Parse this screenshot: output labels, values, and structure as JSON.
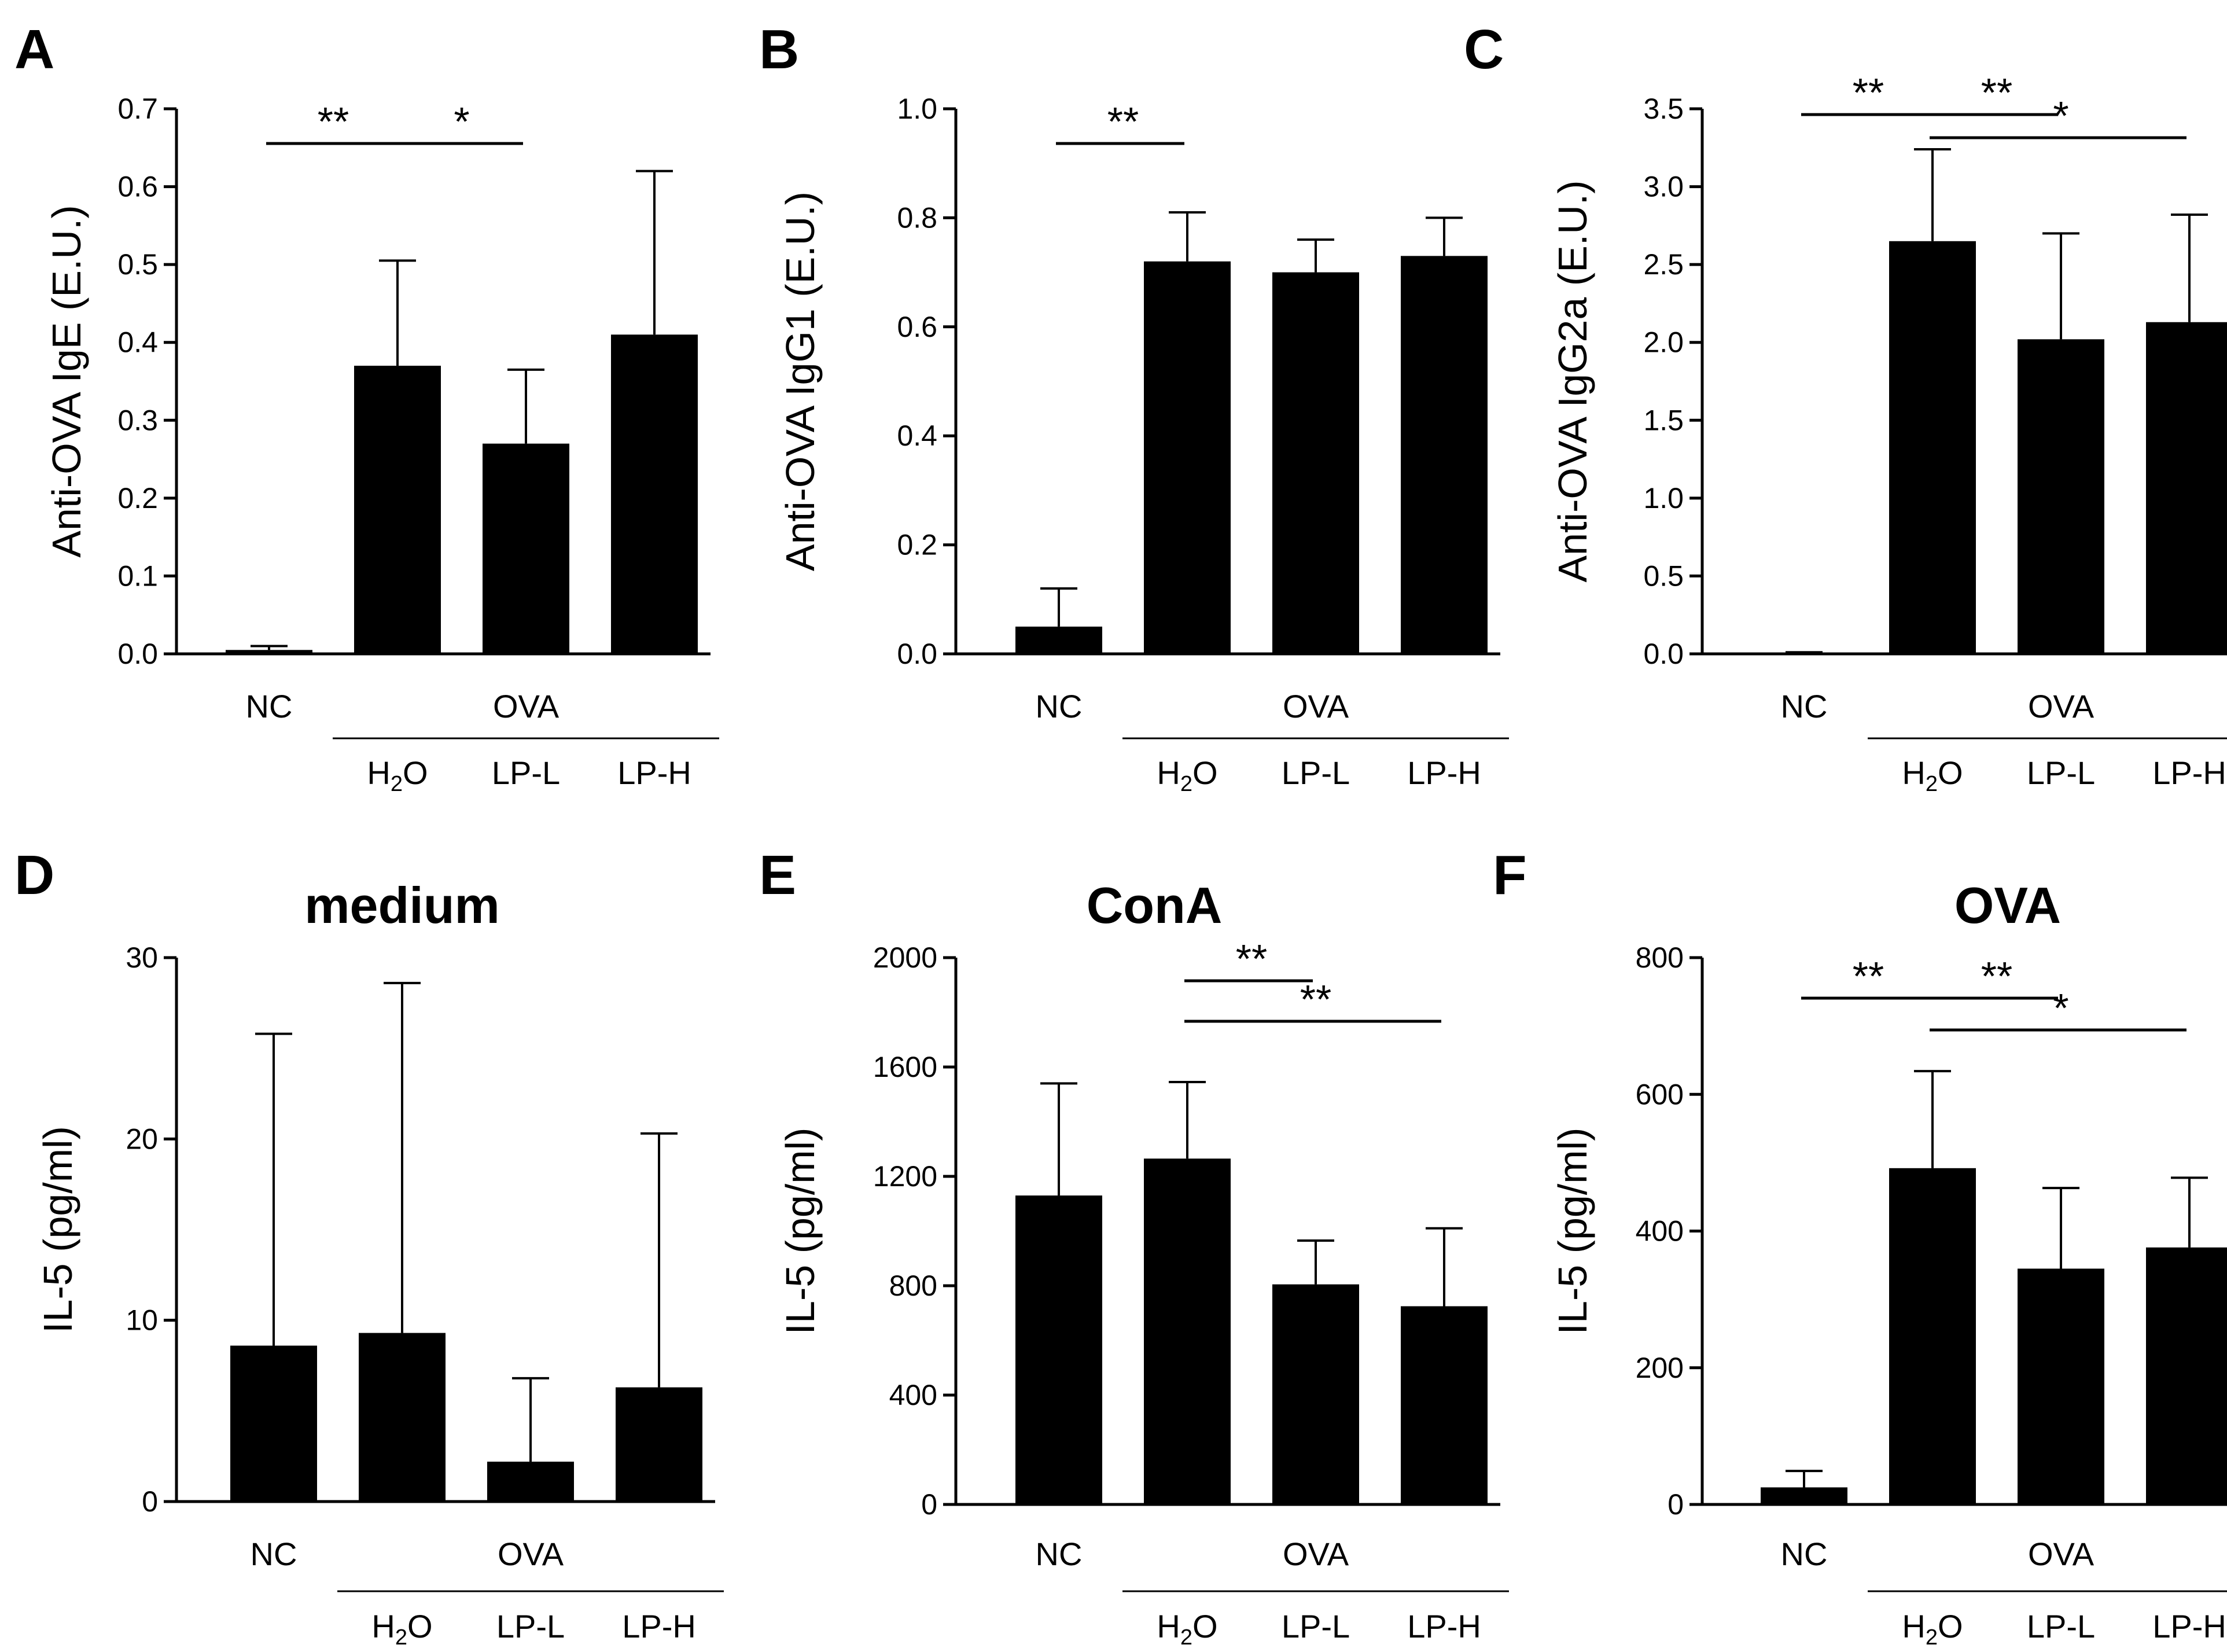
{
  "charts": [
    {
      "id": "A",
      "panel_label": "A",
      "title": "",
      "ylabel": "Anti-OVA IgE (E.U.)",
      "ticks": [
        "0.0",
        "0.1",
        "0.2",
        "0.3",
        "0.4",
        "0.5",
        "0.6",
        "0.7"
      ],
      "sig": [
        {
          "text": "**",
          "from": 0,
          "to": 1,
          "level": 0
        },
        {
          "text": "*",
          "from": 1,
          "to": 2,
          "level": 0
        }
      ]
    },
    {
      "id": "B",
      "panel_label": "B",
      "title": "",
      "ylabel": "Anti-OVA IgG1 (E.U.)",
      "ticks": [
        "0.0",
        "0.2",
        "0.4",
        "0.6",
        "0.8",
        "1.0"
      ],
      "sig": [
        {
          "text": "**",
          "from": 0,
          "to": 1,
          "level": 0
        }
      ]
    },
    {
      "id": "C",
      "panel_label": "C",
      "title": "",
      "ylabel": "Anti-OVA IgG2a (E.U.)",
      "ticks": [
        "0.0",
        "0.5",
        "1.0",
        "1.5",
        "2.0",
        "2.5",
        "3.0",
        "3.5"
      ],
      "sig": [
        {
          "text": "**",
          "from": 0,
          "to": 1,
          "level": 0
        },
        {
          "text": "**",
          "from": 1,
          "to": 2,
          "level": 0
        },
        {
          "text": "*",
          "from": 1,
          "to": 3,
          "level": 1
        }
      ]
    },
    {
      "id": "D",
      "panel_label": "D",
      "title": "medium",
      "ylabel": "IL-5 (pg/ml)",
      "ticks": [
        "0",
        "10",
        "20",
        "30"
      ],
      "sig": []
    },
    {
      "id": "E",
      "panel_label": "E",
      "title": "ConA",
      "ylabel": "IL-5 (pg/ml)",
      "ticks": [
        "0",
        "400",
        "800",
        "1200",
        "1600",
        "2000"
      ],
      "sig": [
        {
          "text": "**",
          "from": 1,
          "to": 2,
          "level": 0
        },
        {
          "text": "**",
          "from": 1,
          "to": 3,
          "level": 1
        }
      ]
    },
    {
      "id": "F",
      "panel_label": "F",
      "title": "OVA",
      "ylabel": "IL-5 (pg/ml)",
      "ticks": [
        "0",
        "200",
        "400",
        "600",
        "800"
      ],
      "sig": [
        {
          "text": "**",
          "from": 0,
          "to": 1,
          "level": 0
        },
        {
          "text": "**",
          "from": 1,
          "to": 2,
          "level": 0
        },
        {
          "text": "*",
          "from": 1,
          "to": 3,
          "level": 1
        }
      ]
    }
  ],
  "x_axis": {
    "categories": [
      "NC",
      "H2O",
      "LP-L",
      "LP-H"
    ],
    "h2o_parts": {
      "main_left": "H",
      "sub": "2",
      "main_right": "O"
    },
    "group_label": "OVA"
  },
  "chart_data": [
    {
      "type": "bar",
      "panel": "A",
      "title": "",
      "xlabel": "",
      "ylabel": "Anti-OVA IgE (E.U.)",
      "ylim": [
        0,
        0.7
      ],
      "categories": [
        "NC",
        "H2O",
        "LP-L",
        "LP-H"
      ],
      "values": [
        0.005,
        0.37,
        0.27,
        0.41
      ],
      "errors": [
        0.005,
        0.135,
        0.095,
        0.21
      ],
      "significance": [
        {
          "pair": [
            "NC",
            "H2O"
          ],
          "label": "**"
        },
        {
          "pair": [
            "H2O",
            "LP-L"
          ],
          "label": "*"
        }
      ]
    },
    {
      "type": "bar",
      "panel": "B",
      "title": "",
      "xlabel": "",
      "ylabel": "Anti-OVA IgG1 (E.U.)",
      "ylim": [
        0,
        1.0
      ],
      "categories": [
        "NC",
        "H2O",
        "LP-L",
        "LP-H"
      ],
      "values": [
        0.05,
        0.72,
        0.7,
        0.73
      ],
      "errors": [
        0.07,
        0.09,
        0.06,
        0.07
      ],
      "significance": [
        {
          "pair": [
            "NC",
            "H2O"
          ],
          "label": "**"
        }
      ]
    },
    {
      "type": "bar",
      "panel": "C",
      "title": "",
      "xlabel": "",
      "ylabel": "Anti-OVA IgG2a (E.U.)",
      "ylim": [
        0,
        3.5
      ],
      "categories": [
        "NC",
        "H2O",
        "LP-L",
        "LP-H"
      ],
      "values": [
        0.005,
        2.65,
        2.02,
        2.13
      ],
      "errors": [
        0.005,
        0.59,
        0.68,
        0.69
      ],
      "significance": [
        {
          "pair": [
            "NC",
            "H2O"
          ],
          "label": "**"
        },
        {
          "pair": [
            "H2O",
            "LP-L"
          ],
          "label": "**"
        },
        {
          "pair": [
            "H2O",
            "LP-H"
          ],
          "label": "*"
        }
      ]
    },
    {
      "type": "bar",
      "panel": "D",
      "title": "medium",
      "xlabel": "",
      "ylabel": "IL-5 (pg/ml)",
      "ylim": [
        0,
        30
      ],
      "categories": [
        "NC",
        "H2O",
        "LP-L",
        "LP-H"
      ],
      "values": [
        8.6,
        9.3,
        2.2,
        6.3
      ],
      "errors": [
        17.2,
        19.3,
        4.6,
        14.0
      ],
      "significance": []
    },
    {
      "type": "bar",
      "panel": "E",
      "title": "ConA",
      "xlabel": "",
      "ylabel": "IL-5 (pg/ml)",
      "ylim": [
        0,
        2000
      ],
      "categories": [
        "NC",
        "H2O",
        "LP-L",
        "LP-H"
      ],
      "values": [
        1130,
        1265,
        805,
        725
      ],
      "errors": [
        410,
        280,
        160,
        285
      ],
      "significance": [
        {
          "pair": [
            "H2O",
            "LP-L"
          ],
          "label": "**"
        },
        {
          "pair": [
            "H2O",
            "LP-H"
          ],
          "label": "**"
        }
      ]
    },
    {
      "type": "bar",
      "panel": "F",
      "title": "OVA",
      "xlabel": "",
      "ylabel": "IL-5 (pg/ml)",
      "ylim": [
        0,
        800
      ],
      "categories": [
        "NC",
        "H2O",
        "LP-L",
        "LP-H"
      ],
      "values": [
        25,
        492,
        345,
        376
      ],
      "errors": [
        24,
        142,
        118,
        102
      ],
      "significance": [
        {
          "pair": [
            "NC",
            "H2O"
          ],
          "label": "**"
        },
        {
          "pair": [
            "H2O",
            "LP-L"
          ],
          "label": "**"
        },
        {
          "pair": [
            "H2O",
            "LP-H"
          ],
          "label": "*"
        }
      ]
    }
  ]
}
